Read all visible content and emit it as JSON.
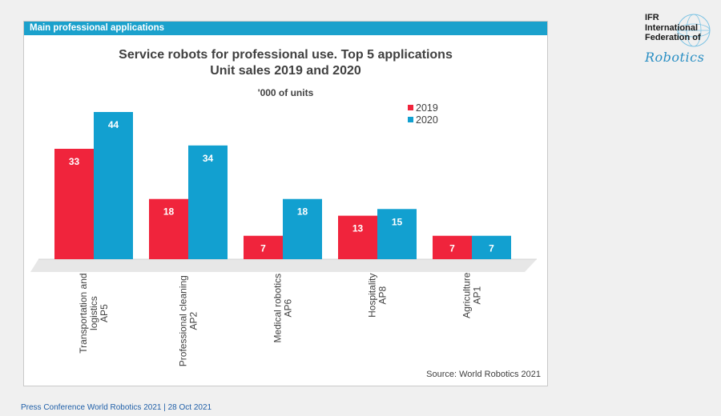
{
  "header": {
    "section_label": "Main professional applications"
  },
  "logo": {
    "line1": "IFR",
    "line2": "International",
    "line3": "Federation of",
    "script": "Robotics"
  },
  "footer": {
    "text": "Press Conference World Robotics 2021  |  28 Oct 2021"
  },
  "colors": {
    "accent": "#1ba1cc",
    "series_2019": "#f0243c",
    "series_2020": "#12a0d0"
  },
  "chart_data": {
    "type": "bar",
    "title": "Service robots for professional  use. Top 5 applications",
    "subtitle": "Unit sales 2019 and 2020",
    "units_label": "'000 of units",
    "categories": [
      [
        "Transportation and",
        "logistics",
        "AP5"
      ],
      [
        "Professional cleaning",
        "AP2"
      ],
      [
        "Medical robotics",
        "AP6"
      ],
      [
        "Hospitality",
        "AP8"
      ],
      [
        "Agriculture",
        "AP1"
      ]
    ],
    "series": [
      {
        "name": "2019",
        "values": [
          33,
          18,
          7,
          13,
          7
        ]
      },
      {
        "name": "2020",
        "values": [
          44,
          34,
          18,
          15,
          7
        ]
      }
    ],
    "legend_position": "top-right",
    "grid": false,
    "ylim": [
      0,
      44
    ],
    "source": "Source: World Robotics 2021"
  }
}
